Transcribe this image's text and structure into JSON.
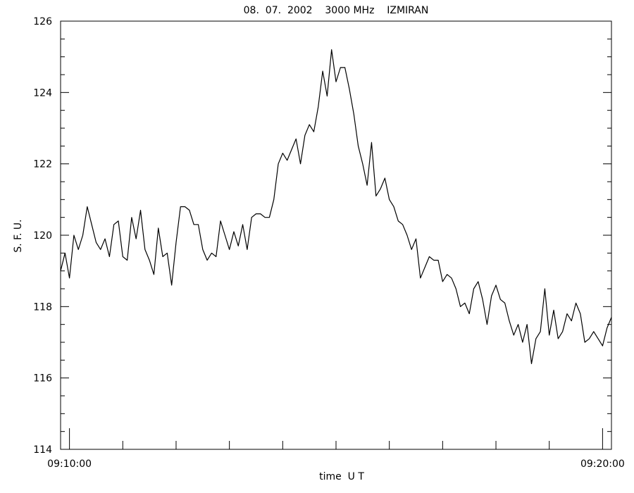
{
  "chart_data": {
    "type": "line",
    "title": "08.  07.  2002    3000 MHz    IZMIRAN",
    "y_label": "S. F. U.",
    "x_label": "time  U T",
    "color": "#000000",
    "xlim": [
      "09:09:50",
      "09:20:10"
    ],
    "ylim": [
      114,
      126
    ],
    "xticks": [
      "09:10:00",
      "09:20:00"
    ],
    "xminorticks": [
      "09:11:00",
      "09:12:00",
      "09:13:00",
      "09:14:00",
      "09:15:00",
      "09:16:00",
      "09:17:00",
      "09:18:00",
      "09:19:00"
    ],
    "yticks": [
      114,
      116,
      118,
      120,
      122,
      124,
      126
    ],
    "yminorticks": [
      114.5,
      115,
      115.5,
      116.5,
      117,
      117.5,
      118.5,
      119,
      119.5,
      120.5,
      121,
      121.5,
      122.5,
      123,
      123.5,
      124.5,
      125,
      125.5
    ],
    "x": [
      "09:09:50",
      "09:09:55",
      "09:10:00",
      "09:10:05",
      "09:10:10",
      "09:10:15",
      "09:10:20",
      "09:10:25",
      "09:10:30",
      "09:10:35",
      "09:10:40",
      "09:10:45",
      "09:10:50",
      "09:10:55",
      "09:11:00",
      "09:11:05",
      "09:11:10",
      "09:11:15",
      "09:11:20",
      "09:11:25",
      "09:11:30",
      "09:11:35",
      "09:11:40",
      "09:11:45",
      "09:11:50",
      "09:11:55",
      "09:12:00",
      "09:12:05",
      "09:12:10",
      "09:12:15",
      "09:12:20",
      "09:12:25",
      "09:12:30",
      "09:12:35",
      "09:12:40",
      "09:12:45",
      "09:12:50",
      "09:12:55",
      "09:13:00",
      "09:13:05",
      "09:13:10",
      "09:13:15",
      "09:13:20",
      "09:13:25",
      "09:13:30",
      "09:13:35",
      "09:13:40",
      "09:13:45",
      "09:13:50",
      "09:13:55",
      "09:14:00",
      "09:14:05",
      "09:14:10",
      "09:14:15",
      "09:14:20",
      "09:14:25",
      "09:14:30",
      "09:14:35",
      "09:14:40",
      "09:14:45",
      "09:14:50",
      "09:14:55",
      "09:15:00",
      "09:15:05",
      "09:15:10",
      "09:15:15",
      "09:15:20",
      "09:15:25",
      "09:15:30",
      "09:15:35",
      "09:15:40",
      "09:15:45",
      "09:15:50",
      "09:15:55",
      "09:16:00",
      "09:16:05",
      "09:16:10",
      "09:16:15",
      "09:16:20",
      "09:16:25",
      "09:16:30",
      "09:16:35",
      "09:16:40",
      "09:16:45",
      "09:16:50",
      "09:16:55",
      "09:17:00",
      "09:17:05",
      "09:17:10",
      "09:17:15",
      "09:17:20",
      "09:17:25",
      "09:17:30",
      "09:17:35",
      "09:17:40",
      "09:17:45",
      "09:17:50",
      "09:17:55",
      "09:18:00",
      "09:18:05",
      "09:18:10",
      "09:18:15",
      "09:18:20",
      "09:18:25",
      "09:18:30",
      "09:18:35",
      "09:18:40",
      "09:18:45",
      "09:18:50",
      "09:18:55",
      "09:19:00",
      "09:19:05",
      "09:19:10",
      "09:19:15",
      "09:19:20",
      "09:19:25",
      "09:19:30",
      "09:19:35",
      "09:19:40",
      "09:19:45",
      "09:19:50",
      "09:19:55",
      "09:20:00",
      "09:20:05",
      "09:20:10"
    ],
    "values": [
      119.0,
      119.5,
      118.8,
      120.0,
      119.6,
      120.0,
      120.8,
      120.3,
      119.8,
      119.6,
      119.9,
      119.4,
      120.3,
      120.4,
      119.4,
      119.3,
      120.5,
      119.9,
      120.7,
      119.6,
      119.3,
      118.9,
      120.2,
      119.4,
      119.5,
      118.6,
      119.8,
      120.8,
      120.8,
      120.7,
      120.3,
      120.3,
      119.6,
      119.3,
      119.5,
      119.4,
      120.4,
      120.0,
      119.6,
      120.1,
      119.7,
      120.3,
      119.6,
      120.5,
      120.6,
      120.6,
      120.5,
      120.5,
      121.0,
      122.0,
      122.3,
      122.1,
      122.4,
      122.7,
      122.0,
      122.8,
      123.1,
      122.9,
      123.6,
      124.6,
      123.9,
      125.2,
      124.3,
      124.7,
      124.7,
      124.1,
      123.4,
      122.5,
      122.0,
      121.4,
      122.6,
      121.1,
      121.3,
      121.6,
      121.0,
      120.8,
      120.4,
      120.3,
      120.0,
      119.6,
      119.9,
      118.8,
      119.1,
      119.4,
      119.3,
      119.3,
      118.7,
      118.9,
      118.8,
      118.5,
      118.0,
      118.1,
      117.8,
      118.5,
      118.7,
      118.2,
      117.5,
      118.3,
      118.6,
      118.2,
      118.1,
      117.6,
      117.2,
      117.5,
      117.0,
      117.5,
      116.4,
      117.1,
      117.3,
      118.5,
      117.2,
      117.9,
      117.1,
      117.3,
      117.8,
      117.6,
      118.1,
      117.8,
      117.0,
      117.1,
      117.3,
      117.1,
      116.9,
      117.4,
      117.7
    ]
  }
}
